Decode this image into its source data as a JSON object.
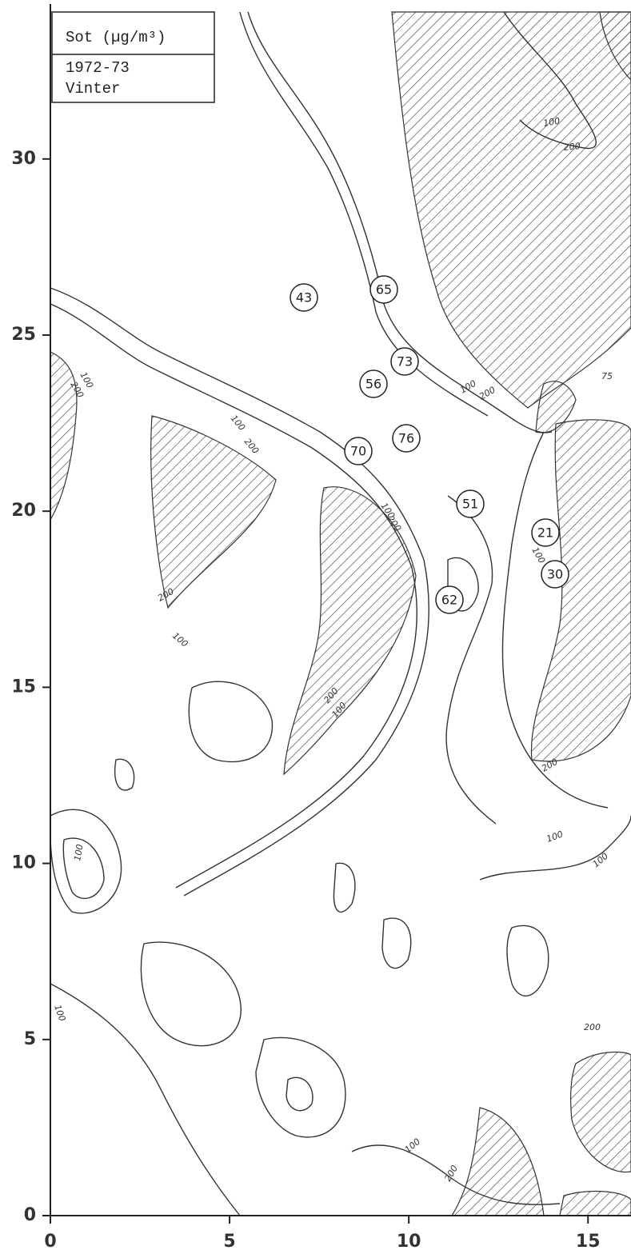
{
  "legend": {
    "title": "Sot (µg/m³)",
    "period": "1972-73",
    "season": "Vinter"
  },
  "x_axis": {
    "lim": [
      0,
      16.2
    ],
    "ticks": [
      0,
      5,
      10,
      15
    ]
  },
  "y_axis": {
    "lim": [
      0,
      34.4
    ],
    "ticks": [
      0,
      5,
      10,
      15,
      20,
      25,
      30
    ]
  },
  "stations": [
    43,
    65,
    73,
    56,
    76,
    70,
    51,
    21,
    30,
    62
  ],
  "contour_labels": [
    "100",
    "200",
    "100",
    "200",
    "75",
    "100",
    "200",
    "100",
    "200",
    "100",
    "200",
    "200",
    "100",
    "200",
    "100",
    "100",
    "200",
    "100",
    "100",
    "100",
    "100",
    "200",
    "100",
    "200"
  ]
}
